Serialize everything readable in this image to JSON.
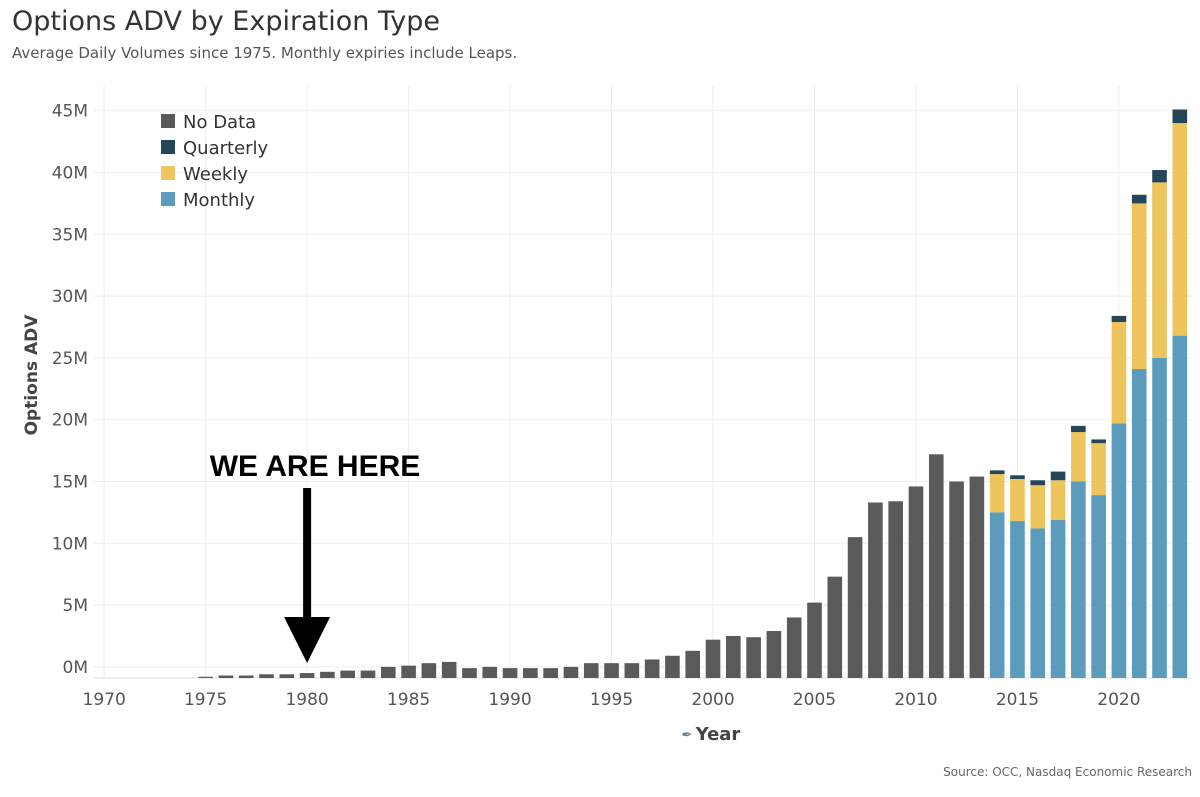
{
  "chart_data": {
    "type": "bar",
    "stacked": true,
    "title": "Options ADV by Expiration Type",
    "subtitle": "Average Daily Volumes since 1975. Monthly expiries include Leaps.",
    "xlabel": "Year",
    "ylabel": "Options ADV",
    "source": "Source: OCC, Nasdaq Economic Research",
    "annotation": "WE ARE HERE",
    "annotation_year": 1980,
    "x_ticks": [
      1970,
      1975,
      1980,
      1985,
      1990,
      1995,
      2000,
      2005,
      2010,
      2015,
      2020
    ],
    "y_ticks": [
      {
        "value": 0,
        "label": "0M"
      },
      {
        "value": 5,
        "label": "5M"
      },
      {
        "value": 10,
        "label": "10M"
      },
      {
        "value": 15,
        "label": "15M"
      },
      {
        "value": 20,
        "label": "20M"
      },
      {
        "value": 25,
        "label": "25M"
      },
      {
        "value": 30,
        "label": "30M"
      },
      {
        "value": 35,
        "label": "35M"
      },
      {
        "value": 40,
        "label": "40M"
      },
      {
        "value": 45,
        "label": "45M"
      }
    ],
    "xlim": [
      1969.5,
      2023.6
    ],
    "ylim": [
      -0.9,
      47
    ],
    "units": "millions of contracts",
    "legend": {
      "position": "top-left",
      "items": [
        {
          "name": "No Data",
          "color": "#5a5a5a"
        },
        {
          "name": "Quarterly",
          "color": "#254558"
        },
        {
          "name": "Weekly",
          "color": "#eec45d"
        },
        {
          "name": "Monthly",
          "color": "#5b9bbb"
        }
      ]
    },
    "years": [
      1975,
      1976,
      1977,
      1978,
      1979,
      1980,
      1981,
      1982,
      1983,
      1984,
      1985,
      1986,
      1987,
      1988,
      1989,
      1990,
      1991,
      1992,
      1993,
      1994,
      1995,
      1996,
      1997,
      1998,
      1999,
      2000,
      2001,
      2002,
      2003,
      2004,
      2005,
      2006,
      2007,
      2008,
      2009,
      2010,
      2011,
      2012,
      2013,
      2014,
      2015,
      2016,
      2017,
      2018,
      2019,
      2020,
      2021,
      2022,
      2023
    ],
    "series": [
      {
        "name": "No Data",
        "values": [
          0.1,
          0.2,
          0.2,
          0.3,
          0.3,
          0.4,
          0.5,
          0.6,
          0.6,
          0.9,
          1.0,
          1.2,
          1.3,
          0.8,
          0.9,
          0.8,
          0.8,
          0.8,
          0.9,
          1.2,
          1.2,
          1.2,
          1.5,
          1.8,
          2.2,
          3.1,
          3.4,
          3.3,
          3.8,
          4.9,
          6.1,
          8.2,
          11.4,
          14.2,
          14.3,
          15.5,
          18.1,
          15.9,
          16.3,
          0,
          0,
          0,
          0,
          0,
          0,
          0,
          0,
          0,
          0
        ]
      },
      {
        "name": "Monthly",
        "values": [
          0,
          0,
          0,
          0,
          0,
          0,
          0,
          0,
          0,
          0,
          0,
          0,
          0,
          0,
          0,
          0,
          0,
          0,
          0,
          0,
          0,
          0,
          0,
          0,
          0,
          0,
          0,
          0,
          0,
          0,
          0,
          0,
          0,
          0,
          0,
          0,
          0,
          0,
          0,
          13.4,
          12.7,
          12.1,
          12.8,
          15.9,
          14.8,
          20.6,
          25.0,
          25.9,
          27.7
        ]
      },
      {
        "name": "Weekly",
        "values": [
          0,
          0,
          0,
          0,
          0,
          0,
          0,
          0,
          0,
          0,
          0,
          0,
          0,
          0,
          0,
          0,
          0,
          0,
          0,
          0,
          0,
          0,
          0,
          0,
          0,
          0,
          0,
          0,
          0,
          0,
          0,
          0,
          0,
          0,
          0,
          0,
          0,
          0,
          0,
          3.1,
          3.4,
          3.5,
          3.2,
          4.0,
          4.2,
          8.2,
          13.4,
          14.2,
          17.2
        ]
      },
      {
        "name": "Quarterly",
        "values": [
          0,
          0,
          0,
          0,
          0,
          0,
          0,
          0,
          0,
          0,
          0,
          0,
          0,
          0,
          0,
          0,
          0,
          0,
          0,
          0,
          0,
          0,
          0,
          0,
          0,
          0,
          0,
          0,
          0,
          0,
          0,
          0,
          0,
          0,
          0,
          0,
          0,
          0,
          0,
          0.3,
          0.3,
          0.4,
          0.7,
          0.5,
          0.3,
          0.5,
          0.7,
          1.0,
          1.1
        ]
      }
    ]
  }
}
